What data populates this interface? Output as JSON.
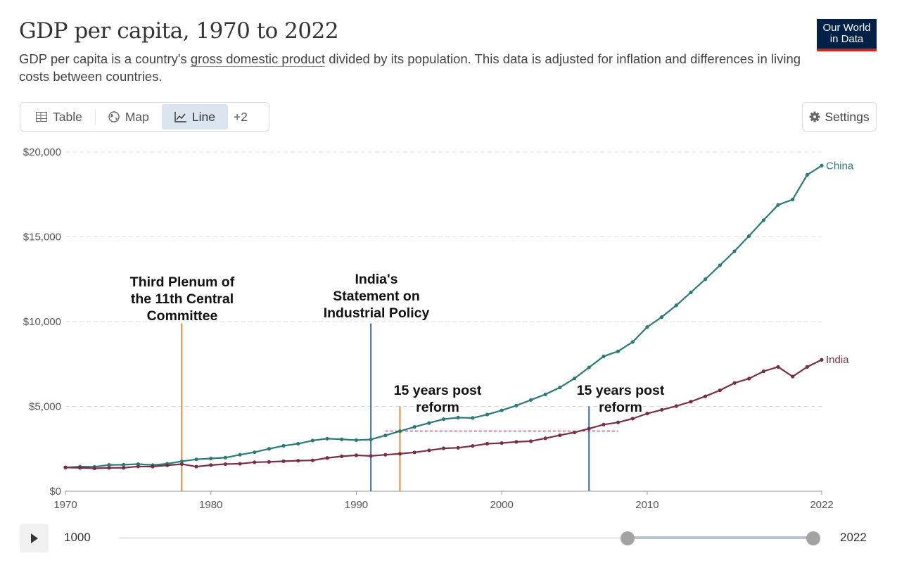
{
  "header": {
    "title": "GDP per capita, 1970 to 2022",
    "subtitle_pre": "GDP per capita is a country's ",
    "subtitle_link": "gross domestic product",
    "subtitle_post": " divided by its population. This data is adjusted for inflation and differences in living costs between countries.",
    "logo_line1": "Our World",
    "logo_line2": "in Data"
  },
  "tabs": [
    {
      "label": "Table",
      "icon": "table-icon"
    },
    {
      "label": "Map",
      "icon": "globe-icon"
    },
    {
      "label": "Line",
      "icon": "line-chart-icon",
      "active": true
    },
    {
      "label": "+2"
    }
  ],
  "settings_label": "Settings",
  "timeline": {
    "start_label": "1000",
    "end_label": "2022",
    "selected_start": 1970,
    "selected_end": 2022
  },
  "colors": {
    "china": "#2a7a78",
    "india": "#7a2e45",
    "orange": "#e0883a",
    "blue": "#3b6e9b",
    "grid": "#ddd"
  },
  "chart_data": {
    "type": "line",
    "title": "GDP per capita, 1970 to 2022",
    "xlabel": "",
    "ylabel": "",
    "xlim": [
      1970,
      2022
    ],
    "ylim": [
      0,
      20000
    ],
    "yticks": [
      0,
      5000,
      10000,
      15000,
      20000
    ],
    "ytick_labels": [
      "$0",
      "$5,000",
      "$10,000",
      "$15,000",
      "$20,000"
    ],
    "xticks": [
      1970,
      1980,
      1990,
      2000,
      2010,
      2022
    ],
    "xtick_labels": [
      "1970",
      "1980",
      "1990",
      "2000",
      "2010",
      "2022"
    ],
    "grid": "horizontal dashed",
    "legend": "end-of-line labels",
    "x": [
      1970,
      1971,
      1972,
      1973,
      1974,
      1975,
      1976,
      1977,
      1978,
      1979,
      1980,
      1981,
      1982,
      1983,
      1984,
      1985,
      1986,
      1987,
      1988,
      1989,
      1990,
      1991,
      1992,
      1993,
      1994,
      1995,
      1996,
      1997,
      1998,
      1999,
      2000,
      2001,
      2002,
      2003,
      2004,
      2005,
      2006,
      2007,
      2008,
      2009,
      2010,
      2011,
      2012,
      2013,
      2014,
      2015,
      2016,
      2017,
      2018,
      2019,
      2020,
      2021,
      2022
    ],
    "series": [
      {
        "name": "China",
        "values": [
          1400,
          1450,
          1440,
          1550,
          1560,
          1600,
          1540,
          1620,
          1760,
          1880,
          1930,
          1980,
          2150,
          2300,
          2500,
          2680,
          2800,
          2990,
          3100,
          3060,
          3010,
          3050,
          3290,
          3540,
          3790,
          4020,
          4250,
          4340,
          4320,
          4520,
          4770,
          5050,
          5380,
          5710,
          6120,
          6650,
          7300,
          7950,
          8250,
          8800,
          9680,
          10270,
          10960,
          11720,
          12500,
          13320,
          14150,
          15050,
          15980,
          16880,
          17200,
          18650,
          19200
        ]
      },
      {
        "name": "India",
        "values": [
          1400,
          1380,
          1350,
          1380,
          1380,
          1460,
          1450,
          1530,
          1600,
          1450,
          1540,
          1600,
          1620,
          1710,
          1730,
          1770,
          1800,
          1820,
          1960,
          2060,
          2120,
          2080,
          2150,
          2210,
          2290,
          2410,
          2530,
          2560,
          2670,
          2800,
          2840,
          2910,
          2950,
          3120,
          3300,
          3470,
          3690,
          3930,
          4060,
          4280,
          4580,
          4800,
          5020,
          5280,
          5600,
          5950,
          6380,
          6640,
          7070,
          7330,
          6760,
          7330,
          7750
        ]
      }
    ],
    "annotations": [
      {
        "label_lines": [
          "Third Plenum of",
          "the 11th Central",
          "Committee"
        ],
        "year": 1978,
        "line_top": 9900,
        "color": "orange"
      },
      {
        "label_lines": [
          "India's",
          "Statement on",
          "Industrial Policy"
        ],
        "year": 1991,
        "line_top": 9900,
        "color": "blue"
      },
      {
        "label_lines": [
          "15 years post",
          "reform"
        ],
        "year": 1993,
        "line_top": 5000,
        "color": "orange"
      },
      {
        "label_lines": [
          "15 years post",
          "reform"
        ],
        "year": 2006,
        "line_top": 5000,
        "color": "blue"
      }
    ],
    "reference_line": {
      "value": 3550,
      "from": 1992,
      "to": 2008,
      "style": "dashed"
    }
  }
}
